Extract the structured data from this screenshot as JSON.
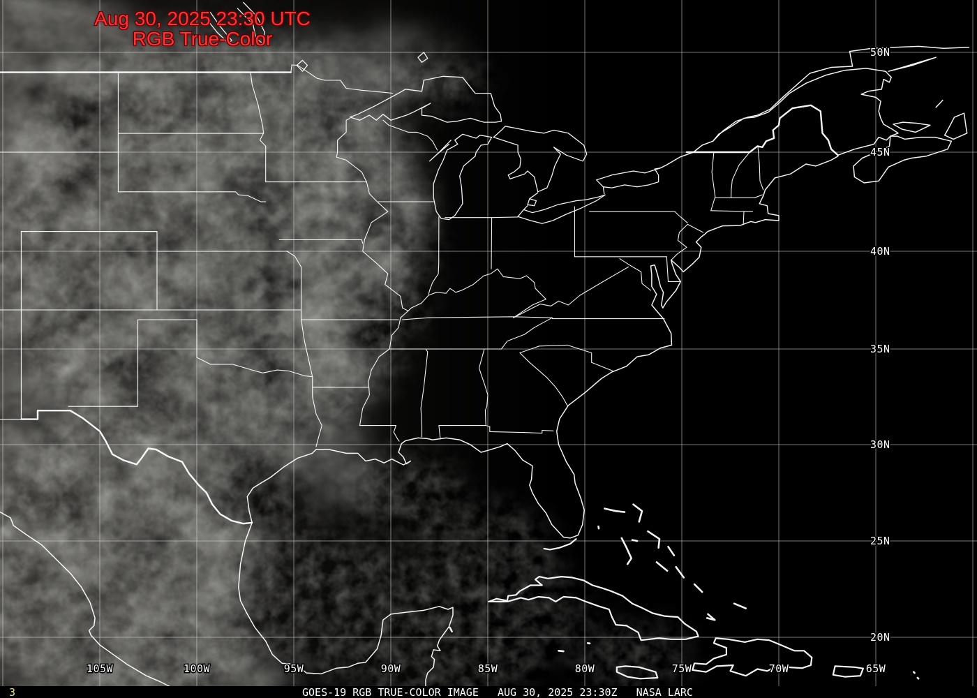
{
  "map_overlay": {
    "timestamp_line1": "Aug 30, 2025 23:30 UTC",
    "timestamp_line2": "RGB True-Color",
    "timestamp_color": "#ff3232",
    "frame_number": "3",
    "frame_number_color": "#e9e96a"
  },
  "status_bar": {
    "caption": "GOES-19 RGB TRUE-COLOR IMAGE   AUG 30, 2025 23:30Z   NASA LARC",
    "text_color": "#ffffff",
    "background": "#000000"
  },
  "grid": {
    "line_color": "rgba(220,220,220,0.55)",
    "label_color": "#ffffff",
    "lat_labels": [
      {
        "text": "50N",
        "lat": 50
      },
      {
        "text": "45N",
        "lat": 45
      },
      {
        "text": "40N",
        "lat": 40
      },
      {
        "text": "35N",
        "lat": 35
      },
      {
        "text": "30N",
        "lat": 30
      },
      {
        "text": "25N",
        "lat": 25
      },
      {
        "text": "20N",
        "lat": 20
      }
    ],
    "lon_labels": [
      {
        "text": "105W",
        "lon": -105
      },
      {
        "text": "100W",
        "lon": -100
      },
      {
        "text": "95W",
        "lon": -95
      },
      {
        "text": "90W",
        "lon": -90
      },
      {
        "text": "85W",
        "lon": -85
      },
      {
        "text": "80W",
        "lon": -80
      },
      {
        "text": "75W",
        "lon": -75
      },
      {
        "text": "70W",
        "lon": -70
      },
      {
        "text": "65W",
        "lon": -65
      }
    ],
    "unlabeled_lons": [
      -110,
      -60
    ],
    "coastline_color": "#ffffff"
  }
}
